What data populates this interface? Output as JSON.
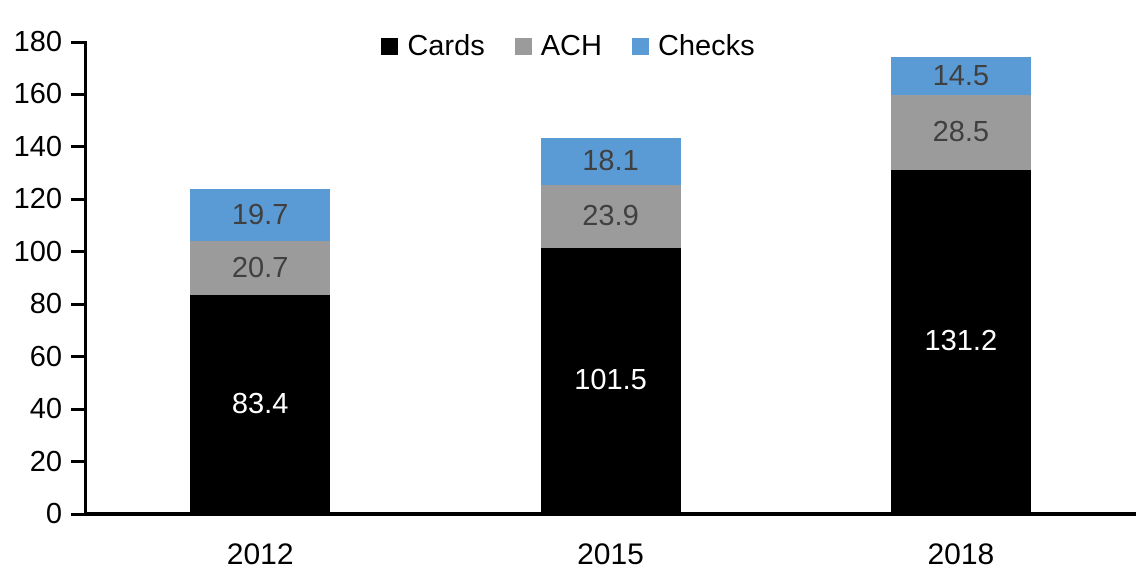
{
  "chart_data": {
    "type": "bar",
    "stacked": true,
    "title": "",
    "xlabel": "",
    "ylabel": "",
    "categories": [
      "2012",
      "2015",
      "2018"
    ],
    "series": [
      {
        "name": "Cards",
        "color": "#000000",
        "label_color": "#ffffff",
        "values": [
          83.4,
          101.5,
          131.2
        ]
      },
      {
        "name": "ACH",
        "color": "#9b9b9b",
        "label_color": "#404040",
        "values": [
          20.7,
          23.9,
          28.5
        ]
      },
      {
        "name": "Checks",
        "color": "#5b9bd5",
        "label_color": "#404040",
        "values": [
          19.7,
          18.1,
          14.5
        ]
      }
    ],
    "totals": [
      123.8,
      143.5,
      174.2
    ],
    "ylim": [
      0,
      180
    ],
    "yticks": [
      0,
      20,
      40,
      60,
      80,
      100,
      120,
      140,
      160,
      180
    ],
    "grid": false,
    "legend_position": "top-center",
    "axis_color": "#000000"
  }
}
